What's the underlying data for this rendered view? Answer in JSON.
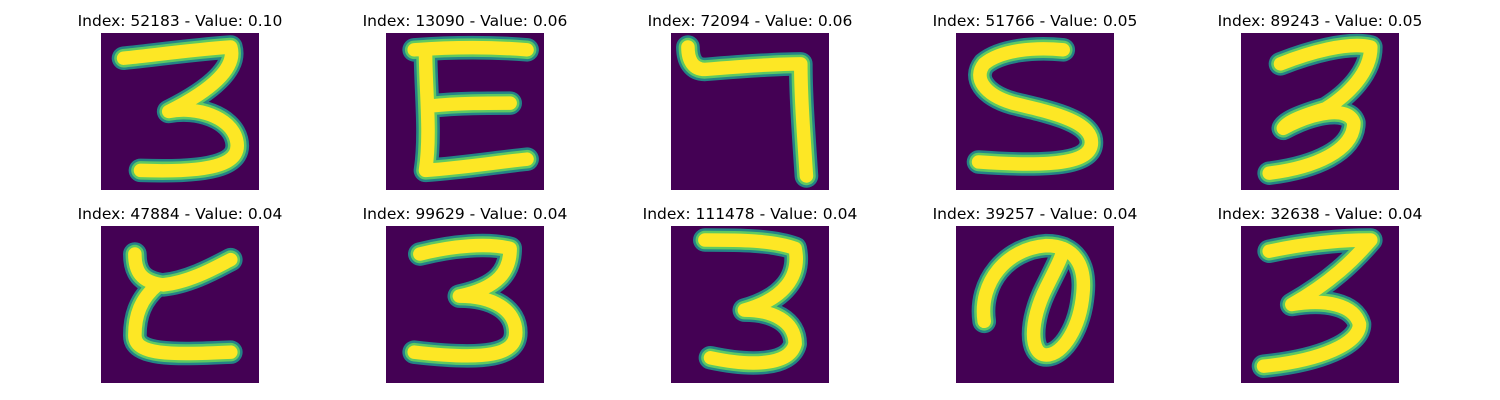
{
  "colors": {
    "background": "#440154",
    "stroke_core": "#fde725",
    "stroke_mid": "#5ec962",
    "stroke_edge": "#21918c"
  },
  "panels": [
    {
      "title": "Index: 52183 - Value: 0.10",
      "digit": "3"
    },
    {
      "title": "Index: 13090 - Value: 0.06",
      "digit": "E"
    },
    {
      "title": "Index: 72094 - Value: 0.06",
      "digit": "7"
    },
    {
      "title": "Index: 51766 - Value: 0.05",
      "digit": "5"
    },
    {
      "title": "Index: 89243 - Value: 0.05",
      "digit": "3"
    },
    {
      "title": "Index: 47884 - Value: 0.04",
      "digit": "ε"
    },
    {
      "title": "Index: 99629 - Value: 0.04",
      "digit": "3"
    },
    {
      "title": "Index: 111478 - Value: 0.04",
      "digit": "3"
    },
    {
      "title": "Index: 39257 - Value: 0.04",
      "digit": "a"
    },
    {
      "title": "Index: 32638 - Value: 0.04",
      "digit": "3"
    }
  ]
}
